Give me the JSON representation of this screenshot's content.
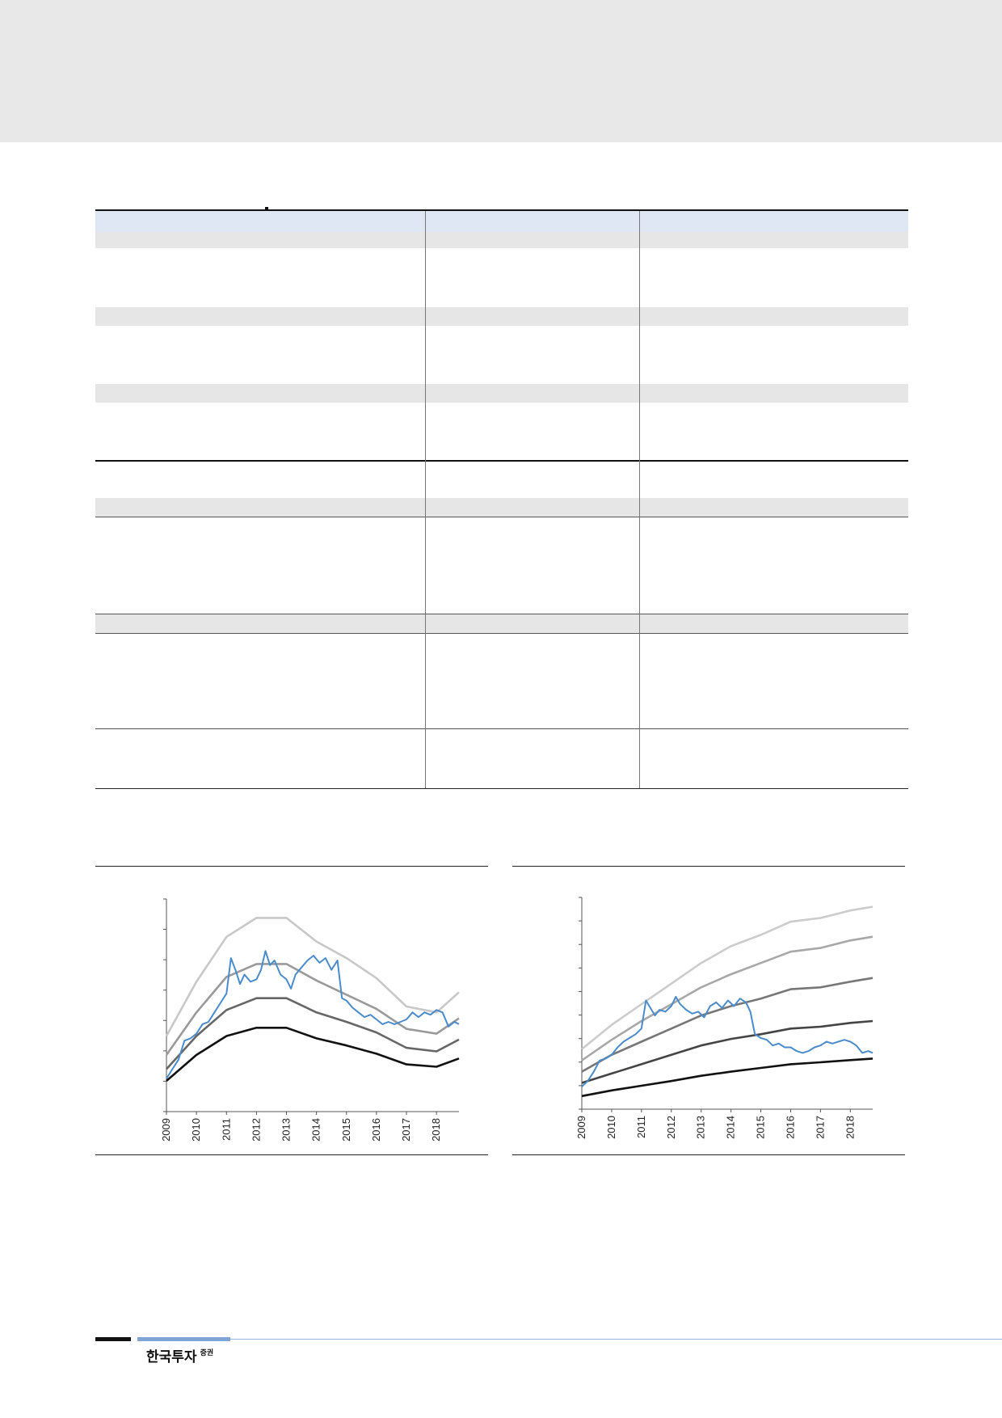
{
  "footer": {
    "brand": "한국투자",
    "brand_suffix": "증권"
  },
  "colors": {
    "header_fill": "#dfe7f5",
    "shade_fill": "#e6e6e6",
    "series_blue": "#4a8ccb",
    "band_dark": "#111111",
    "band_mid_dark": "#666666",
    "band_mid": "#9a9a9a",
    "band_light": "#c8c8c8"
  },
  "chart_data": [
    {
      "type": "line",
      "x_tick_labels": [
        "2009",
        "2010",
        "2011",
        "2012",
        "2013",
        "2014",
        "2015",
        "2016",
        "2017",
        "2018"
      ],
      "xlim": [
        2009,
        2018.75
      ],
      "y_tick_count": 7,
      "series": [
        {
          "color": "#111111",
          "points": [
            [
              2009,
              0.13
            ],
            [
              2010,
              0.24
            ],
            [
              2011,
              0.32
            ],
            [
              2012,
              0.355
            ],
            [
              2013,
              0.355
            ],
            [
              2014,
              0.31
            ],
            [
              2015,
              0.28
            ],
            [
              2016,
              0.245
            ],
            [
              2017,
              0.2
            ],
            [
              2018,
              0.19
            ],
            [
              2018.75,
              0.225
            ]
          ]
        },
        {
          "color": "#666666",
          "points": [
            [
              2009,
              0.18
            ],
            [
              2010,
              0.32
            ],
            [
              2011,
              0.43
            ],
            [
              2012,
              0.48
            ],
            [
              2013,
              0.48
            ],
            [
              2014,
              0.42
            ],
            [
              2015,
              0.38
            ],
            [
              2016,
              0.335
            ],
            [
              2017,
              0.27
            ],
            [
              2018,
              0.255
            ],
            [
              2018.75,
              0.305
            ]
          ]
        },
        {
          "color": "#9a9a9a",
          "points": [
            [
              2009,
              0.24
            ],
            [
              2010,
              0.42
            ],
            [
              2011,
              0.57
            ],
            [
              2012,
              0.625
            ],
            [
              2013,
              0.625
            ],
            [
              2014,
              0.555
            ],
            [
              2015,
              0.495
            ],
            [
              2016,
              0.435
            ],
            [
              2017,
              0.35
            ],
            [
              2018,
              0.33
            ],
            [
              2018.75,
              0.395
            ]
          ]
        },
        {
          "color": "#c8c8c8",
          "points": [
            [
              2009,
              0.32
            ],
            [
              2010,
              0.55
            ],
            [
              2011,
              0.74
            ],
            [
              2012,
              0.82
            ],
            [
              2013,
              0.82
            ],
            [
              2014,
              0.72
            ],
            [
              2015,
              0.65
            ],
            [
              2016,
              0.565
            ],
            [
              2017,
              0.445
            ],
            [
              2018,
              0.42
            ],
            [
              2018.75,
              0.505
            ]
          ]
        },
        {
          "color": "#4a8ccb",
          "points": [
            [
              2009,
              0.14
            ],
            [
              2009.2,
              0.18
            ],
            [
              2009.4,
              0.22
            ],
            [
              2009.6,
              0.3
            ],
            [
              2009.8,
              0.31
            ],
            [
              2010,
              0.33
            ],
            [
              2010.2,
              0.37
            ],
            [
              2010.4,
              0.38
            ],
            [
              2010.6,
              0.42
            ],
            [
              2010.8,
              0.46
            ],
            [
              2011,
              0.5
            ],
            [
              2011.15,
              0.65
            ],
            [
              2011.3,
              0.6
            ],
            [
              2011.45,
              0.54
            ],
            [
              2011.6,
              0.58
            ],
            [
              2011.8,
              0.55
            ],
            [
              2012,
              0.56
            ],
            [
              2012.15,
              0.6
            ],
            [
              2012.3,
              0.68
            ],
            [
              2012.45,
              0.62
            ],
            [
              2012.6,
              0.64
            ],
            [
              2012.8,
              0.58
            ],
            [
              2013,
              0.56
            ],
            [
              2013.15,
              0.52
            ],
            [
              2013.3,
              0.58
            ],
            [
              2013.5,
              0.61
            ],
            [
              2013.7,
              0.64
            ],
            [
              2013.9,
              0.66
            ],
            [
              2014.1,
              0.63
            ],
            [
              2014.3,
              0.65
            ],
            [
              2014.5,
              0.6
            ],
            [
              2014.7,
              0.64
            ],
            [
              2014.85,
              0.48
            ],
            [
              2015,
              0.47
            ],
            [
              2015.2,
              0.44
            ],
            [
              2015.4,
              0.42
            ],
            [
              2015.6,
              0.4
            ],
            [
              2015.8,
              0.41
            ],
            [
              2016,
              0.39
            ],
            [
              2016.2,
              0.37
            ],
            [
              2016.4,
              0.38
            ],
            [
              2016.6,
              0.37
            ],
            [
              2016.8,
              0.38
            ],
            [
              2017,
              0.39
            ],
            [
              2017.2,
              0.42
            ],
            [
              2017.4,
              0.4
            ],
            [
              2017.6,
              0.42
            ],
            [
              2017.8,
              0.41
            ],
            [
              2018,
              0.43
            ],
            [
              2018.2,
              0.42
            ],
            [
              2018.4,
              0.36
            ],
            [
              2018.6,
              0.38
            ],
            [
              2018.75,
              0.37
            ]
          ]
        }
      ]
    },
    {
      "type": "line",
      "x_tick_labels": [
        "2009",
        "2010",
        "2011",
        "2012",
        "2013",
        "2014",
        "2015",
        "2016",
        "2017",
        "2018"
      ],
      "xlim": [
        2009,
        2018.75
      ],
      "y_tick_count": 9,
      "series": [
        {
          "color": "#111111",
          "points": [
            [
              2009,
              0.07
            ],
            [
              2010,
              0.1
            ],
            [
              2011,
              0.125
            ],
            [
              2012,
              0.15
            ],
            [
              2013,
              0.178
            ],
            [
              2014,
              0.2
            ],
            [
              2015,
              0.22
            ],
            [
              2016,
              0.24
            ],
            [
              2017,
              0.25
            ],
            [
              2018,
              0.262
            ],
            [
              2018.75,
              0.27
            ]
          ]
        },
        {
          "color": "#444444",
          "points": [
            [
              2009,
              0.14
            ],
            [
              2010,
              0.19
            ],
            [
              2011,
              0.24
            ],
            [
              2012,
              0.29
            ],
            [
              2013,
              0.34
            ],
            [
              2014,
              0.375
            ],
            [
              2015,
              0.4
            ],
            [
              2016,
              0.43
            ],
            [
              2017,
              0.44
            ],
            [
              2018,
              0.46
            ],
            [
              2018.75,
              0.47
            ]
          ]
        },
        {
          "color": "#777777",
          "points": [
            [
              2009,
              0.2
            ],
            [
              2010,
              0.29
            ],
            [
              2011,
              0.36
            ],
            [
              2012,
              0.43
            ],
            [
              2013,
              0.5
            ],
            [
              2014,
              0.55
            ],
            [
              2015,
              0.59
            ],
            [
              2016,
              0.64
            ],
            [
              2017,
              0.65
            ],
            [
              2018,
              0.68
            ],
            [
              2018.75,
              0.7
            ]
          ]
        },
        {
          "color": "#a8a8a8",
          "points": [
            [
              2009,
              0.26
            ],
            [
              2010,
              0.37
            ],
            [
              2011,
              0.47
            ],
            [
              2012,
              0.56
            ],
            [
              2013,
              0.65
            ],
            [
              2014,
              0.72
            ],
            [
              2015,
              0.78
            ],
            [
              2016,
              0.84
            ],
            [
              2017,
              0.86
            ],
            [
              2018,
              0.9
            ],
            [
              2018.75,
              0.92
            ]
          ]
        },
        {
          "color": "#cccccc",
          "points": [
            [
              2009,
              0.32
            ],
            [
              2010,
              0.45
            ],
            [
              2011,
              0.56
            ],
            [
              2012,
              0.67
            ],
            [
              2013,
              0.78
            ],
            [
              2014,
              0.87
            ],
            [
              2015,
              0.93
            ],
            [
              2016,
              1.0
            ],
            [
              2017,
              1.02
            ],
            [
              2018,
              1.06
            ],
            [
              2018.75,
              1.08
            ]
          ]
        },
        {
          "color": "#4a8ccb",
          "points": [
            [
              2009,
              0.12
            ],
            [
              2009.2,
              0.15
            ],
            [
              2009.4,
              0.2
            ],
            [
              2009.6,
              0.26
            ],
            [
              2009.8,
              0.27
            ],
            [
              2010,
              0.29
            ],
            [
              2010.2,
              0.33
            ],
            [
              2010.4,
              0.36
            ],
            [
              2010.6,
              0.38
            ],
            [
              2010.8,
              0.4
            ],
            [
              2011,
              0.43
            ],
            [
              2011.15,
              0.58
            ],
            [
              2011.3,
              0.54
            ],
            [
              2011.45,
              0.5
            ],
            [
              2011.6,
              0.53
            ],
            [
              2011.8,
              0.52
            ],
            [
              2012,
              0.55
            ],
            [
              2012.15,
              0.6
            ],
            [
              2012.3,
              0.56
            ],
            [
              2012.5,
              0.53
            ],
            [
              2012.7,
              0.51
            ],
            [
              2012.9,
              0.52
            ],
            [
              2013.1,
              0.49
            ],
            [
              2013.3,
              0.55
            ],
            [
              2013.5,
              0.57
            ],
            [
              2013.7,
              0.54
            ],
            [
              2013.9,
              0.58
            ],
            [
              2014.1,
              0.55
            ],
            [
              2014.3,
              0.59
            ],
            [
              2014.5,
              0.57
            ],
            [
              2014.65,
              0.52
            ],
            [
              2014.8,
              0.4
            ],
            [
              2015,
              0.38
            ],
            [
              2015.2,
              0.37
            ],
            [
              2015.4,
              0.34
            ],
            [
              2015.6,
              0.35
            ],
            [
              2015.8,
              0.33
            ],
            [
              2016,
              0.33
            ],
            [
              2016.2,
              0.31
            ],
            [
              2016.4,
              0.3
            ],
            [
              2016.6,
              0.31
            ],
            [
              2016.8,
              0.33
            ],
            [
              2017,
              0.34
            ],
            [
              2017.2,
              0.36
            ],
            [
              2017.4,
              0.35
            ],
            [
              2017.6,
              0.36
            ],
            [
              2017.8,
              0.37
            ],
            [
              2018,
              0.36
            ],
            [
              2018.2,
              0.34
            ],
            [
              2018.4,
              0.3
            ],
            [
              2018.6,
              0.31
            ],
            [
              2018.75,
              0.3
            ]
          ]
        }
      ]
    }
  ]
}
